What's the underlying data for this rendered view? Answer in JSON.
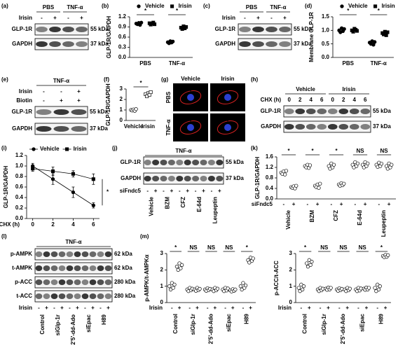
{
  "panels": {
    "a": {
      "label": "(a)",
      "groups": [
        "PBS",
        "TNF-α"
      ],
      "rows": [
        {
          "label": "Irisin",
          "signs": [
            "-",
            "+",
            "-",
            "+"
          ]
        }
      ],
      "blots": [
        {
          "name": "GLP-1R",
          "size": "55 kDa"
        },
        {
          "name": "GAPDH",
          "size": "37 kDa"
        }
      ]
    },
    "c": {
      "label": "(c)",
      "groups": [
        "PBS",
        "TNF-α"
      ],
      "rows": [
        {
          "label": "Irisin",
          "signs": [
            "-",
            "+",
            "-",
            "+"
          ]
        }
      ],
      "blots": [
        {
          "name": "GLP-1R",
          "size": "55 kDa"
        },
        {
          "name": "GAPDH",
          "size": "37 kDa"
        }
      ]
    },
    "e": {
      "label": "(e)",
      "groups": [
        "TNF-α"
      ],
      "rows": [
        {
          "label": "Irisin",
          "signs": [
            "-",
            "-",
            "+"
          ]
        },
        {
          "label": "Biotin",
          "signs": [
            "-",
            "+",
            "+"
          ]
        }
      ],
      "blots": [
        {
          "name": "GLP-1R",
          "size": "55 kDa"
        },
        {
          "name": "GAPDH",
          "size": "37 kDa"
        }
      ]
    },
    "g": {
      "label": "(g)",
      "columns": [
        "Vehicle",
        "Irisin"
      ],
      "rows": [
        "PBS",
        "TNF-α"
      ],
      "scale_bar": "20 μm"
    },
    "h": {
      "label": "(h)",
      "groups": [
        "Vehicle",
        "Irisin"
      ],
      "rows": [
        {
          "label": "CHX (h)",
          "signs": [
            "0",
            "2",
            "4",
            "6",
            "0",
            "2",
            "4",
            "6"
          ]
        }
      ],
      "blots": [
        {
          "name": "GLP-1R",
          "size": "55 kDa"
        },
        {
          "name": "GAPDH",
          "size": "37 kDa"
        }
      ]
    },
    "j": {
      "label": "(j)",
      "groups": [
        "TNF-α"
      ],
      "blots": [
        {
          "name": "GLP-1R",
          "size": "55 kDa"
        },
        {
          "name": "GAPDH",
          "size": "37 kDa"
        }
      ],
      "rows_below": [
        {
          "label": "siFndc5",
          "signs": [
            "-",
            "+",
            "-",
            "+",
            "-",
            "+",
            "-",
            "+",
            "-",
            "+"
          ]
        }
      ],
      "lane_groups": [
        "Vehicle",
        "BZM",
        "CFZ",
        "E-64d",
        "Leupeptin"
      ]
    },
    "l": {
      "label": "(l)",
      "groups": [
        "TNF-α"
      ],
      "blots": [
        {
          "name": "p-AMPK",
          "size": "62 kDa"
        },
        {
          "name": "t-AMPK",
          "size": "62 kDa"
        },
        {
          "name": "p-ACC",
          "size": "280 kDa"
        },
        {
          "name": "t-ACC",
          "size": "280 kDa"
        }
      ],
      "rows_below": [
        {
          "label": "Irisin",
          "signs": [
            "-",
            "+",
            "-",
            "+",
            "-",
            "+",
            "-",
            "+",
            "-",
            "+"
          ]
        }
      ],
      "lane_groups": [
        "Control",
        "siGlp-1r",
        "2'5'-dd-Ado",
        "siEpac",
        "H89"
      ]
    },
    "m": {
      "label": "(m)"
    }
  },
  "chart_data": [
    {
      "type": "dot",
      "panel": "(b)",
      "y_label": "GLP-1R/GAPDH",
      "categories": [
        "PBS",
        "TNF-α"
      ],
      "ylim": [
        0,
        1.2
      ],
      "yticks": [
        {
          "value": 0,
          "label": "0.0"
        },
        0.3,
        0.6,
        0.9,
        1.2
      ],
      "significance": [
        "*",
        "*"
      ],
      "series": [
        {
          "name": "Vehicle",
          "marker": "circle",
          "color": "#000000",
          "values": [
            [
              1.0,
              0.98,
              1.02,
              0.96,
              1.03
            ],
            [
              0.45,
              0.42,
              0.48,
              0.44,
              0.47
            ]
          ]
        },
        {
          "name": "Irisin",
          "marker": "square",
          "color": "#000000",
          "values": [
            [
              1.01,
              0.97,
              1.0,
              1.03,
              0.98
            ],
            [
              0.88,
              0.84,
              0.92,
              0.86,
              0.9
            ]
          ]
        }
      ]
    },
    {
      "type": "dot",
      "panel": "(d)",
      "y_label": "Membrane GLP-1R",
      "categories": [
        "PBS",
        "TNF-α"
      ],
      "ylim": [
        0,
        1.5
      ],
      "yticks": [
        {
          "value": 0,
          "label": "0.0"
        },
        0.5,
        {
          "value": 1,
          "label": "1.0"
        },
        1.5
      ],
      "significance": [
        "*",
        "*"
      ],
      "series": [
        {
          "name": "Vehicle",
          "marker": "circle",
          "color": "#000000",
          "values": [
            [
              1.0,
              0.93,
              1.08,
              0.97,
              1.05
            ],
            [
              0.55,
              0.5,
              0.6,
              0.47,
              0.57
            ]
          ]
        },
        {
          "name": "Irisin",
          "marker": "square",
          "color": "#000000",
          "values": [
            [
              1.0,
              0.95,
              1.06,
              1.02,
              0.98
            ],
            [
              0.9,
              0.85,
              0.95,
              0.82,
              0.93
            ]
          ]
        }
      ]
    },
    {
      "type": "dot",
      "panel": "(f)",
      "y_label": "GLP-1R/GAPDH",
      "categories": [
        "Vehicle",
        "Irisin"
      ],
      "ylim": [
        0,
        3
      ],
      "yticks": [
        0,
        1,
        2,
        3
      ],
      "significance_bracket": "*",
      "series": [
        {
          "marker": [
            "circle",
            "square"
          ],
          "color": "#ffffff",
          "values": [
            [
              1.0,
              0.95,
              1.05,
              0.92,
              1.08
            ],
            [
              2.5,
              2.3,
              2.6,
              2.45,
              2.7
            ]
          ]
        }
      ]
    },
    {
      "type": "line",
      "panel": "(i)",
      "y_label": "GLP-1R/GAPDH",
      "x_label": "CHX (h)",
      "x": [
        0,
        2,
        4,
        6
      ],
      "xlim": [
        -0.6,
        6.6
      ],
      "xticks": [
        0,
        2,
        4,
        6
      ],
      "ylim": [
        0,
        1.2
      ],
      "yticks": [
        {
          "value": 0,
          "label": "0.0"
        },
        0.2,
        0.4,
        0.6,
        0.8,
        {
          "value": 1,
          "label": "1.0"
        },
        1.2
      ],
      "significance": "*",
      "series": [
        {
          "name": "Vehicle",
          "marker": "circle",
          "color": "#000000",
          "values": [
            1.0,
            0.75,
            0.5,
            0.25
          ],
          "errors": [
            0.05,
            0.1,
            0.1,
            0.05
          ]
        },
        {
          "name": "Irisin",
          "marker": "square",
          "color": "#000000",
          "values": [
            0.95,
            0.9,
            0.85,
            0.75
          ],
          "errors": [
            0.05,
            0.08,
            0.06,
            0.1
          ]
        }
      ]
    },
    {
      "type": "dot",
      "panel": "(k)",
      "y_label": "GLP-1R/GAPDH",
      "categories": [
        "Vehicle",
        "BZM",
        "CFZ",
        "E-64d",
        "Leupeptin"
      ],
      "sign_row": {
        "label": "siFndc5",
        "signs": [
          "-",
          "+"
        ]
      },
      "ylim": [
        0,
        1.6
      ],
      "yticks": [
        {
          "value": 0,
          "label": "0.0"
        },
        0.4,
        0.8,
        1.2,
        1.6
      ],
      "significance": [
        "*",
        "*",
        "*",
        "NS",
        "NS"
      ],
      "series": [
        {
          "marker": "circle",
          "color": "#ffffff",
          "values": [
            [
              1.0,
              0.95,
              1.05,
              0.93,
              1.07
            ],
            [
              1.25,
              1.2,
              1.3,
              1.18,
              1.28
            ],
            [
              1.25,
              1.15,
              1.35,
              1.2,
              1.3
            ],
            [
              1.3,
              1.2,
              1.4,
              1.25,
              1.35
            ],
            [
              1.3,
              1.22,
              1.38,
              1.25,
              1.34
            ]
          ]
        },
        {
          "marker": "circle",
          "color": "#ffffff",
          "values": [
            [
              0.45,
              0.42,
              0.48,
              0.4,
              0.5
            ],
            [
              0.5,
              0.45,
              0.55,
              0.42,
              0.58
            ],
            [
              0.55,
              0.5,
              0.6,
              0.52,
              0.58
            ],
            [
              1.3,
              1.2,
              1.4,
              1.25,
              1.35
            ],
            [
              1.25,
              1.15,
              1.35,
              1.2,
              1.3
            ]
          ]
        }
      ]
    },
    {
      "type": "dot",
      "y_label": "p-AMPK/t-AMPKα",
      "categories": [
        "Control",
        "siGlp-1r",
        "2'5'-dd-Ado",
        "siEpac",
        "H89"
      ],
      "sign_row": {
        "label": "Irisin",
        "signs": [
          "-",
          "+"
        ]
      },
      "ylim": [
        0,
        3
      ],
      "yticks": [
        0,
        1,
        2,
        3
      ],
      "significance": [
        "*",
        "NS",
        "NS",
        "NS",
        "*"
      ],
      "series": [
        {
          "marker": "circle",
          "color": "#ffffff",
          "values": [
            [
              1.0,
              0.8,
              1.2,
              0.9,
              1.1
            ],
            [
              0.8,
              0.7,
              0.9,
              0.75,
              0.85
            ],
            [
              0.8,
              0.72,
              0.88,
              0.76,
              0.84
            ],
            [
              0.8,
              0.7,
              0.9,
              0.74,
              0.86
            ],
            [
              1.0,
              0.8,
              1.2,
              0.9,
              1.05
            ]
          ]
        },
        {
          "marker": "circle",
          "color": "#ffffff",
          "values": [
            [
              2.2,
              2.0,
              2.4,
              2.1,
              2.3
            ],
            [
              0.8,
              0.72,
              0.9,
              0.76,
              0.84
            ],
            [
              0.8,
              0.7,
              0.9,
              0.75,
              0.85
            ],
            [
              0.75,
              0.68,
              0.82,
              0.72,
              0.8
            ],
            [
              2.6,
              2.45,
              2.75,
              2.55,
              2.7
            ]
          ]
        }
      ]
    },
    {
      "type": "dot",
      "y_label": "p-ACC/t-ACC",
      "categories": [
        "Control",
        "siGlp-1r",
        "2'5'-dd-Ado",
        "siEpac",
        "H89"
      ],
      "sign_row": {
        "label": "Irisin",
        "signs": [
          "-",
          "+"
        ]
      },
      "ylim": [
        0,
        3
      ],
      "yticks": [
        0,
        1,
        2,
        3
      ],
      "significance": [
        "*",
        "NS",
        "NS",
        "NS",
        "*"
      ],
      "series": [
        {
          "marker": "circle",
          "color": "#ffffff",
          "values": [
            [
              0.9,
              0.7,
              1.1,
              0.8,
              1.0
            ],
            [
              0.8,
              0.7,
              0.9,
              0.75,
              0.85
            ],
            [
              0.8,
              0.72,
              0.88,
              0.76,
              0.84
            ],
            [
              0.8,
              0.7,
              0.9,
              0.74,
              0.86
            ],
            [
              0.9,
              0.7,
              1.1,
              0.8,
              1.0
            ]
          ]
        },
        {
          "marker": "circle",
          "color": "#ffffff",
          "values": [
            [
              2.4,
              2.2,
              2.6,
              2.3,
              2.5
            ],
            [
              0.85,
              0.78,
              0.92,
              0.8,
              0.9
            ],
            [
              0.8,
              0.7,
              0.9,
              0.75,
              0.85
            ],
            [
              0.85,
              0.78,
              0.92,
              0.8,
              0.9
            ],
            [
              2.85,
              2.78,
              2.92,
              2.8,
              2.9
            ]
          ]
        }
      ]
    }
  ]
}
